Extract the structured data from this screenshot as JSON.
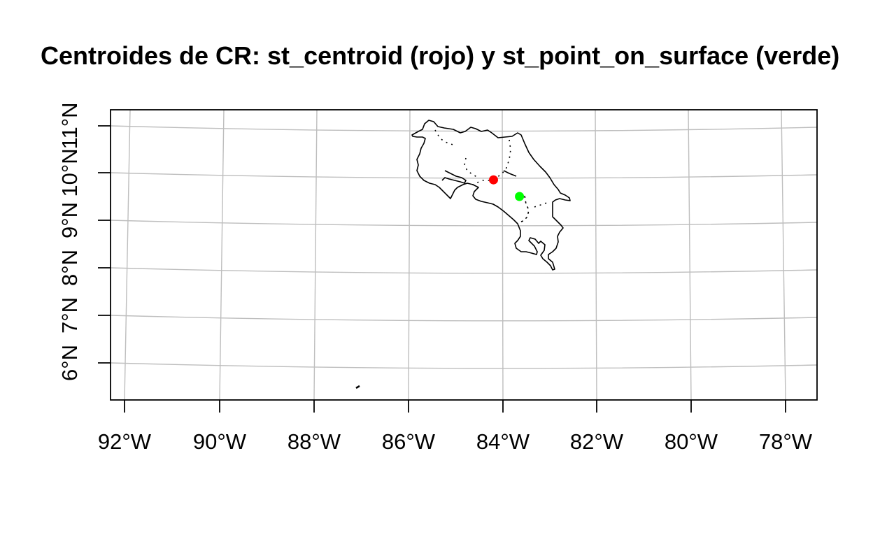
{
  "title": "Centroides de CR: st_centroid (rojo) y st_point_on_surface (verde)",
  "map": {
    "x_ticks": [
      "92°W",
      "90°W",
      "88°W",
      "86°W",
      "84°W",
      "82°W",
      "80°W",
      "78°W"
    ],
    "y_ticks": [
      "6°N",
      "7°N",
      "8°N",
      "9°N",
      "10°N",
      "11°N"
    ],
    "graticule_color": "#bebebe",
    "outline_color": "#000000"
  },
  "points": [
    {
      "name": "st_centroid",
      "lon": -84.2,
      "lat": 9.85,
      "color": "#ff0000"
    },
    {
      "name": "st_point_on_surface",
      "lon": -83.65,
      "lat": 9.5,
      "color": "#00ff00"
    }
  ]
}
